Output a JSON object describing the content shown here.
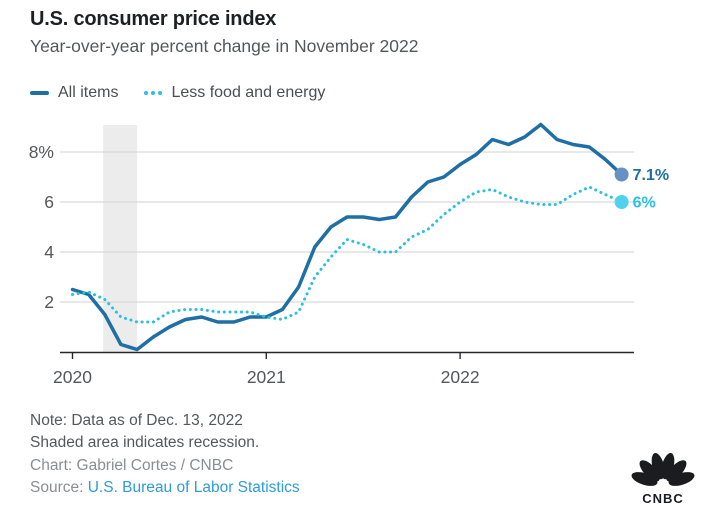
{
  "header": {
    "title": "U.S. consumer price index",
    "subtitle": "Year-over-year percent change in November 2022"
  },
  "legend": [
    {
      "id": "all-items",
      "label": "All items",
      "style": "solid",
      "color": "#1d6fa5"
    },
    {
      "id": "less-food-and-energy",
      "label": "Less food and energy",
      "style": "dotted",
      "color": "#29c0e2"
    }
  ],
  "colors": {
    "accent_blue": "#1d6fa5",
    "accent_cyan": "#29c0e2",
    "recession_shade": "#ececec",
    "link": "#2e9cd6",
    "logo": "#1b1c20"
  },
  "chart_data": {
    "type": "line",
    "x_unit": "month",
    "x_start": "2020-01",
    "x_end": "2022-11",
    "x_tick_labels": [
      "2020",
      "2021",
      "2022"
    ],
    "x_tick_month_indices": [
      0,
      12,
      24
    ],
    "y_ticks": [
      8,
      6,
      4,
      2
    ],
    "y_tick_labels": [
      "8%",
      "6",
      "4",
      "2"
    ],
    "ylim": [
      0,
      9.1
    ],
    "grid": true,
    "legend_position": "top-left",
    "recession_band": {
      "start_index": 1.9,
      "end_index": 4.0,
      "meaning": "recession"
    },
    "series": [
      {
        "name": "All items",
        "style": "solid",
        "color": "#1d6fa5",
        "end_dot_color": "#6591c5",
        "end_label": "7.1%",
        "values": [
          2.5,
          2.3,
          1.5,
          0.3,
          0.1,
          0.6,
          1.0,
          1.3,
          1.4,
          1.2,
          1.2,
          1.4,
          1.4,
          1.7,
          2.6,
          4.2,
          5.0,
          5.4,
          5.4,
          5.3,
          5.4,
          6.2,
          6.8,
          7.0,
          7.5,
          7.9,
          8.5,
          8.3,
          8.6,
          9.1,
          8.5,
          8.3,
          8.2,
          7.7,
          7.1
        ]
      },
      {
        "name": "Less food and energy",
        "style": "dotted",
        "color": "#29c0e2",
        "end_dot_color": "#52d1ef",
        "end_label": "6%",
        "values": [
          2.3,
          2.4,
          2.1,
          1.4,
          1.2,
          1.2,
          1.6,
          1.7,
          1.7,
          1.6,
          1.6,
          1.6,
          1.4,
          1.3,
          1.6,
          3.0,
          3.8,
          4.5,
          4.3,
          4.0,
          4.0,
          4.6,
          4.9,
          5.5,
          6.0,
          6.4,
          6.5,
          6.2,
          6.0,
          5.9,
          5.9,
          6.3,
          6.6,
          6.3,
          6.0
        ]
      }
    ]
  },
  "footer": {
    "note_line1": "Note: Data as of Dec. 13, 2022",
    "note_line2": "Shaded area indicates recession.",
    "credit": "Chart: Gabriel Cortes / CNBC",
    "source_label": "Source: ",
    "source_link": "U.S. Bureau of Labor Statistics"
  },
  "logo": {
    "text": "CNBC"
  }
}
